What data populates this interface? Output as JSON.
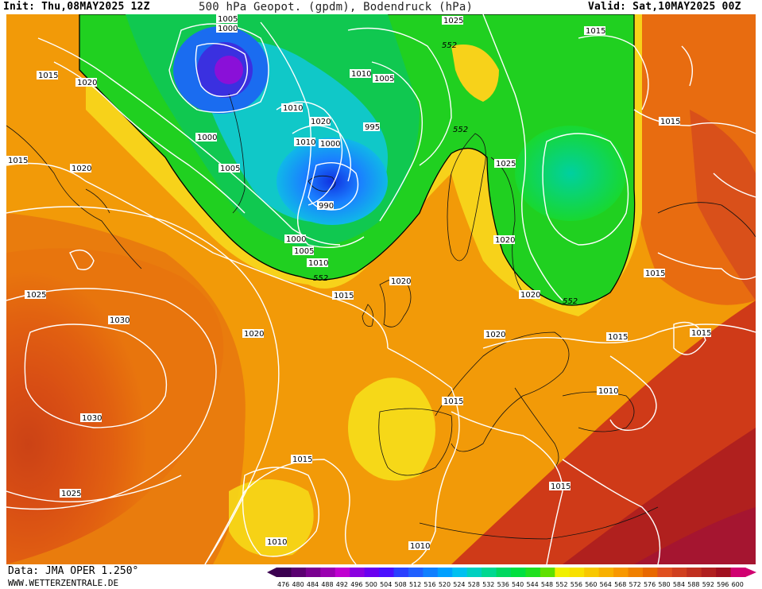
{
  "header": {
    "init": "Init: Thu,08MAY2025 12Z",
    "title": "500 hPa Geopot. (gpdm), Bodendruck (hPa)",
    "valid": "Valid: Sat,10MAY2025 00Z"
  },
  "footer": {
    "data_source": "Data: JMA OPER 1.250°",
    "website": "WWW.WETTERZENTRALE.DE"
  },
  "colors": {
    "isobar": "#ffffff",
    "geopot_552_contour": "#000000"
  },
  "isobar_labels": [
    {
      "id": "p1005a",
      "text": "1005"
    },
    {
      "id": "p1000a",
      "text": "1000"
    },
    {
      "id": "p1025a",
      "text": "1025"
    },
    {
      "id": "p1015a",
      "text": "1015"
    },
    {
      "id": "p1015b",
      "text": "1015"
    },
    {
      "id": "p1020a",
      "text": "1020"
    },
    {
      "id": "p1010a",
      "text": "1010"
    },
    {
      "id": "p1005b",
      "text": "1005"
    },
    {
      "id": "p1010b",
      "text": "1010"
    },
    {
      "id": "p1020b",
      "text": "1020"
    },
    {
      "id": "p995a",
      "text": "995"
    },
    {
      "id": "p1015c",
      "text": "1015"
    },
    {
      "id": "p1000b",
      "text": "1000"
    },
    {
      "id": "p1000c",
      "text": "1000"
    },
    {
      "id": "p1010c",
      "text": "1010"
    },
    {
      "id": "p1015d",
      "text": "1015"
    },
    {
      "id": "p1020c",
      "text": "1020"
    },
    {
      "id": "p1005c",
      "text": "1005"
    },
    {
      "id": "p990a",
      "text": "990"
    },
    {
      "id": "p1025b",
      "text": "1025"
    },
    {
      "id": "p1000d",
      "text": "1000"
    },
    {
      "id": "p1005d",
      "text": "1005"
    },
    {
      "id": "p1010d",
      "text": "1010"
    },
    {
      "id": "p1020d",
      "text": "1020"
    },
    {
      "id": "p1015e",
      "text": "1015"
    },
    {
      "id": "p1020e",
      "text": "1020"
    },
    {
      "id": "p1020f",
      "text": "1020"
    },
    {
      "id": "p1015f",
      "text": "1015"
    },
    {
      "id": "p1025c",
      "text": "1025"
    },
    {
      "id": "p1030a",
      "text": "1030"
    },
    {
      "id": "p1020g",
      "text": "1020"
    },
    {
      "id": "p1020h",
      "text": "1020"
    },
    {
      "id": "p1015g",
      "text": "1015"
    },
    {
      "id": "p1015h",
      "text": "1015"
    },
    {
      "id": "p1015i",
      "text": "1015"
    },
    {
      "id": "p1010e",
      "text": "1010"
    },
    {
      "id": "p1030b",
      "text": "1030"
    },
    {
      "id": "p1015j",
      "text": "1015"
    },
    {
      "id": "p1025d",
      "text": "1025"
    },
    {
      "id": "p1015k",
      "text": "1015"
    },
    {
      "id": "p1010f",
      "text": "1010"
    },
    {
      "id": "p1010g",
      "text": "1010"
    }
  ],
  "geopot_labels": [
    {
      "id": "g552a",
      "text": "552"
    },
    {
      "id": "g552b",
      "text": "552"
    },
    {
      "id": "g552c",
      "text": "552"
    },
    {
      "id": "g552d",
      "text": "552"
    }
  ],
  "colorbar": {
    "unit": "gpdm",
    "ticks": [
      "476",
      "480",
      "484",
      "488",
      "492",
      "496",
      "500",
      "504",
      "508",
      "512",
      "516",
      "520",
      "524",
      "528",
      "532",
      "536",
      "540",
      "544",
      "548",
      "552",
      "556",
      "560",
      "564",
      "568",
      "572",
      "576",
      "580",
      "584",
      "588",
      "592",
      "596",
      "600"
    ],
    "colors": [
      "#3b0050",
      "#5a0070",
      "#7a0090",
      "#9a00b0",
      "#c000d0",
      "#8a00e0",
      "#6a00f0",
      "#4a10ff",
      "#2a40ff",
      "#2060ff",
      "#1080ff",
      "#00a0ff",
      "#00c0f0",
      "#00d0c0",
      "#00d890",
      "#00d860",
      "#00e040",
      "#20e020",
      "#60e000",
      "#f0f000",
      "#f8e000",
      "#f8c800",
      "#f8b000",
      "#f89800",
      "#f08000",
      "#e86800",
      "#e05020",
      "#d04020",
      "#c03020",
      "#b02020",
      "#a01020",
      "#d00070"
    ]
  }
}
